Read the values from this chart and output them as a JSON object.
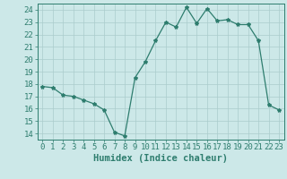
{
  "x": [
    0,
    1,
    2,
    3,
    4,
    5,
    6,
    7,
    8,
    9,
    10,
    11,
    12,
    13,
    14,
    15,
    16,
    17,
    18,
    19,
    20,
    21,
    22,
    23
  ],
  "y": [
    17.8,
    17.7,
    17.1,
    17.0,
    16.7,
    16.4,
    15.9,
    14.1,
    13.8,
    18.5,
    19.8,
    21.5,
    23.0,
    22.6,
    24.2,
    22.9,
    24.1,
    23.1,
    23.2,
    22.8,
    22.8,
    21.5,
    16.3,
    15.9
  ],
  "line_color": "#2e7d6e",
  "marker": "*",
  "marker_size": 3,
  "bg_color": "#cce8e8",
  "grid_color": "#aacccc",
  "xlabel": "Humidex (Indice chaleur)",
  "xlim": [
    -0.5,
    23.5
  ],
  "ylim": [
    13.5,
    24.5
  ],
  "yticks": [
    14,
    15,
    16,
    17,
    18,
    19,
    20,
    21,
    22,
    23,
    24
  ],
  "xticks": [
    0,
    1,
    2,
    3,
    4,
    5,
    6,
    7,
    8,
    9,
    10,
    11,
    12,
    13,
    14,
    15,
    16,
    17,
    18,
    19,
    20,
    21,
    22,
    23
  ],
  "xlabel_fontsize": 7.5,
  "tick_fontsize": 6.5,
  "axis_color": "#2e7d6e",
  "title_color": "#2e7d6e"
}
